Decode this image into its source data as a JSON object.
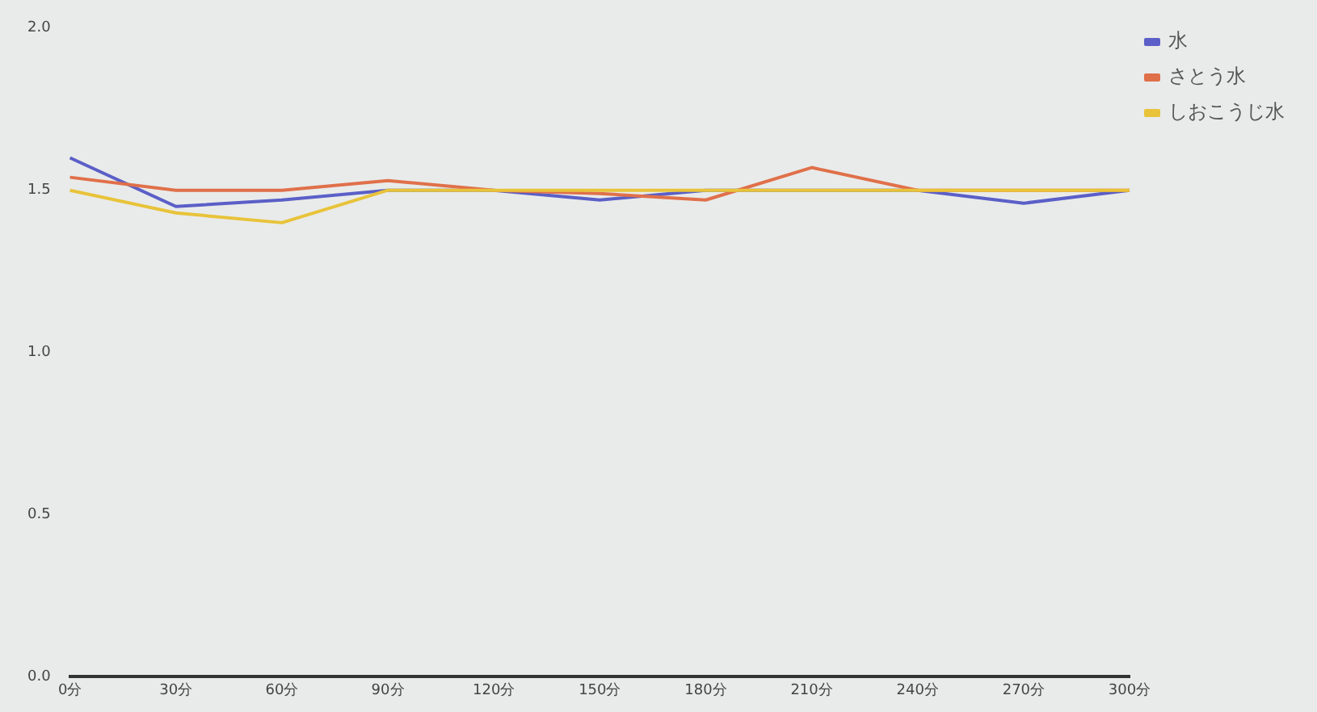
{
  "chart_data": {
    "type": "line",
    "categories": [
      "0分",
      "30分",
      "60分",
      "90分",
      "120分",
      "150分",
      "180分",
      "210分",
      "240分",
      "270分",
      "300分"
    ],
    "series": [
      {
        "name": "水",
        "color": "#5b5fc7",
        "values": [
          1.6,
          1.45,
          1.47,
          1.5,
          1.5,
          1.47,
          1.5,
          1.5,
          1.5,
          1.46,
          1.5
        ]
      },
      {
        "name": "さとう水",
        "color": "#e0704a",
        "values": [
          1.54,
          1.5,
          1.5,
          1.53,
          1.5,
          1.49,
          1.47,
          1.57,
          1.5,
          1.5,
          1.5
        ]
      },
      {
        "name": "しおこうじ水",
        "color": "#e8c33a",
        "values": [
          1.5,
          1.43,
          1.4,
          1.5,
          1.5,
          1.5,
          1.5,
          1.5,
          1.5,
          1.5,
          1.5
        ]
      }
    ],
    "ylim": [
      0,
      2
    ],
    "yticks": [
      {
        "value": 0,
        "label": "0.0"
      },
      {
        "value": 0.5,
        "label": "0.5"
      },
      {
        "value": 1,
        "label": "1.0"
      },
      {
        "value": 1.5,
        "label": "1.5"
      },
      {
        "value": 2,
        "label": "2.0"
      }
    ],
    "grid": false,
    "legend": "top right",
    "marker": "none",
    "line_style": "solid"
  }
}
